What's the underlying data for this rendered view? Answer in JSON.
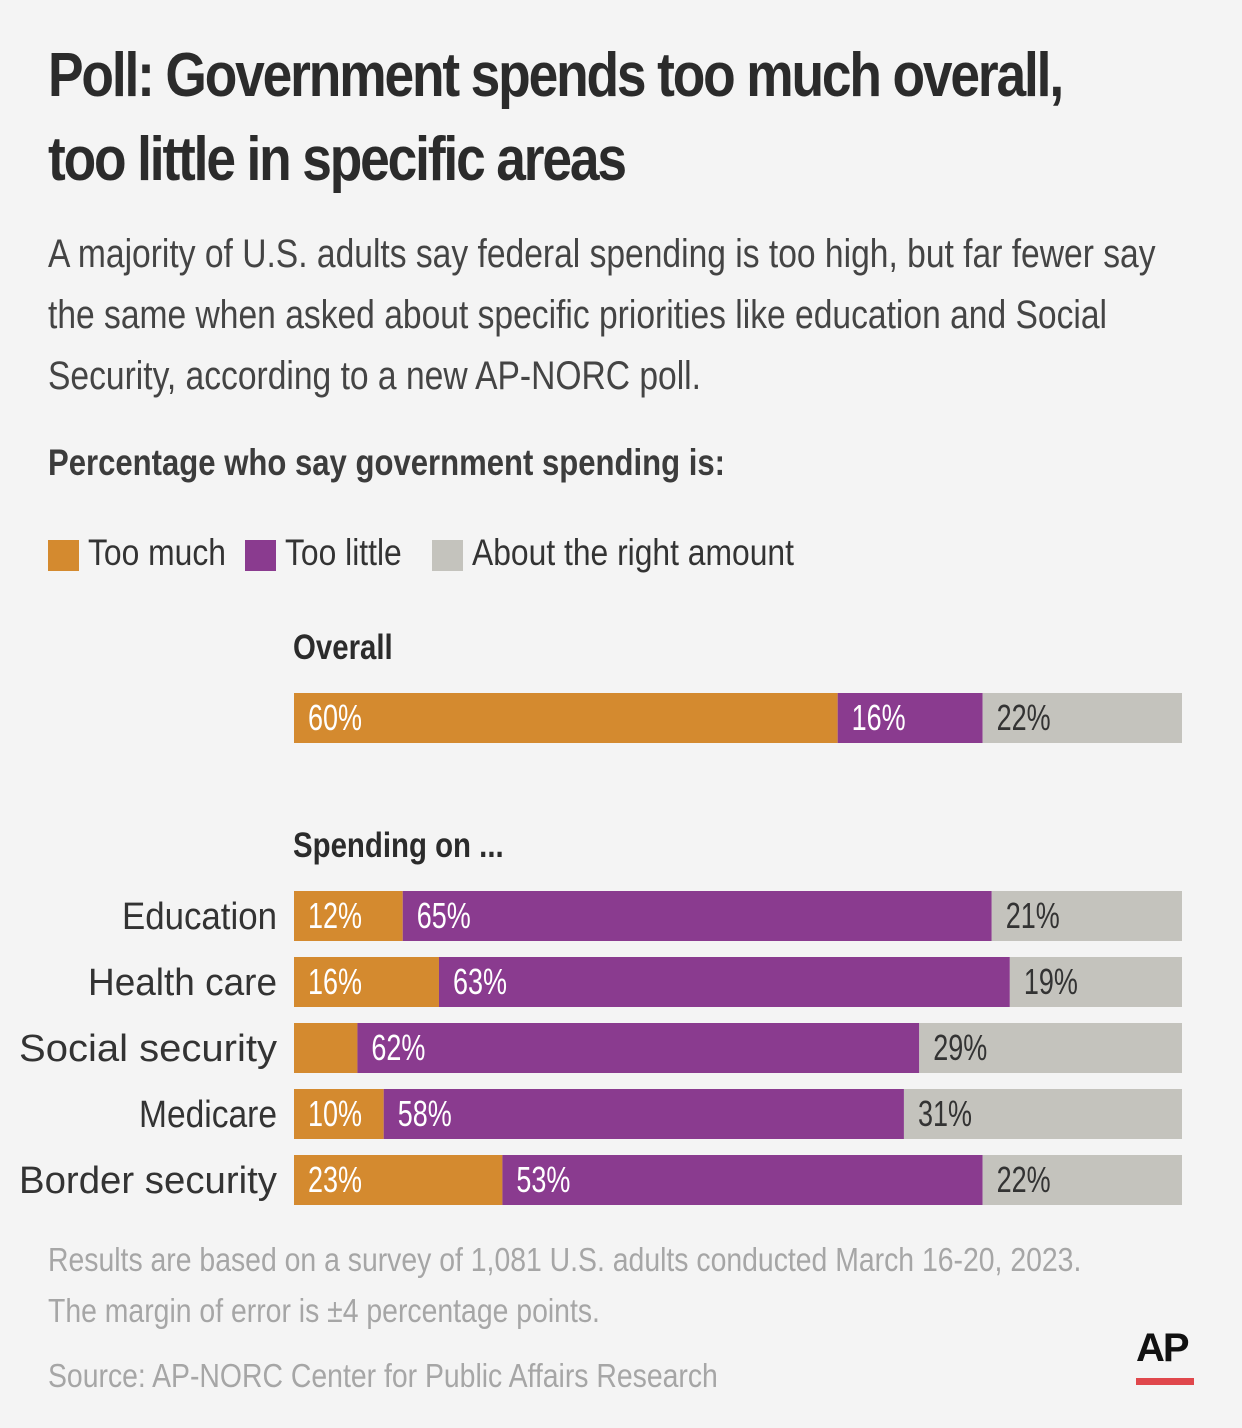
{
  "title_line1": "Poll: Government spends too much overall,",
  "title_line2": "too little in specific areas",
  "subtitle_line1": "A majority of U.S. adults say federal spending is too high, but far fewer say",
  "subtitle_line2": "the same when asked about specific priorities like education and Social",
  "subtitle_line3": "Security, according to a new AP-NORC poll.",
  "section_heading": "Percentage who say government spending is:",
  "legend": [
    {
      "label": "Too much",
      "color": "#d48a2f"
    },
    {
      "label": "Too little",
      "color": "#8a3b8f"
    },
    {
      "label": "About the right amount",
      "color": "#c4c3bd"
    }
  ],
  "overall_label": "Overall",
  "spending_on_label": "Spending on ...",
  "chart_data": {
    "type": "bar",
    "orientation": "horizontal-stacked",
    "title": "Percentage who say government spending is:",
    "series_names": [
      "Too much",
      "Too little",
      "About the right amount"
    ],
    "groups": [
      {
        "group": "Overall",
        "rows": [
          {
            "category": "",
            "values": [
              60,
              16,
              22
            ],
            "labels": [
              "60%",
              "16%",
              "22%"
            ]
          }
        ]
      },
      {
        "group": "Spending on ...",
        "rows": [
          {
            "category": "Education",
            "values": [
              12,
              65,
              21
            ],
            "labels": [
              "12%",
              "65%",
              "21%"
            ]
          },
          {
            "category": "Health care",
            "values": [
              16,
              63,
              19
            ],
            "labels": [
              "16%",
              "63%",
              "19%"
            ]
          },
          {
            "category": "Social security",
            "values": [
              7,
              62,
              29
            ],
            "labels": [
              "",
              "62%",
              "29%"
            ]
          },
          {
            "category": "Medicare",
            "values": [
              10,
              58,
              31
            ],
            "labels": [
              "10%",
              "58%",
              "31%"
            ]
          },
          {
            "category": "Border security",
            "values": [
              23,
              53,
              22
            ],
            "labels": [
              "23%",
              "53%",
              "22%"
            ]
          }
        ]
      }
    ],
    "xlim": [
      0,
      100
    ],
    "colors": [
      "#d48a2f",
      "#8a3b8f",
      "#c4c3bd"
    ],
    "label_colors": [
      "#ffffff",
      "#ffffff",
      "#333333"
    ]
  },
  "footnote_line1": "Results are based on a survey of 1,081 U.S. adults conducted March 16-20, 2023.",
  "footnote_line2": "The margin of error is ±4 percentage points.",
  "source": "Source: AP-NORC Center for Public Affairs Research",
  "logo_text": "AP",
  "logo_accent_color": "#e0474c"
}
